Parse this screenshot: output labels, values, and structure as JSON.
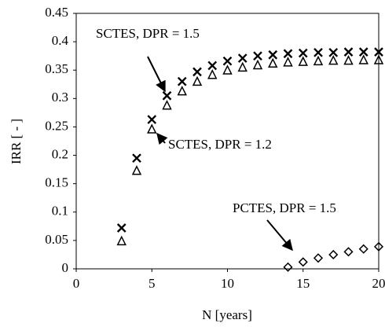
{
  "chart_data": {
    "type": "scatter",
    "x_label": "N [years]",
    "y_label": "IRR [ - ]",
    "xlim": [
      0,
      20
    ],
    "xticks": [
      0,
      5,
      10,
      15,
      20
    ],
    "ylim": [
      0,
      0.45
    ],
    "yticks": [
      0,
      0.05,
      0.1,
      0.15,
      0.2,
      0.25,
      0.3,
      0.35,
      0.4,
      0.45
    ],
    "series": [
      {
        "marker": "x",
        "color": "#000000",
        "x": [
          3,
          4,
          5,
          6,
          7,
          8,
          9,
          10,
          11,
          12,
          13,
          14,
          15,
          16,
          17,
          18,
          19,
          20
        ],
        "values": [
          0.072,
          0.195,
          0.263,
          0.305,
          0.33,
          0.347,
          0.358,
          0.366,
          0.371,
          0.375,
          0.377,
          0.379,
          0.38,
          0.381,
          0.381,
          0.382,
          0.382,
          0.382
        ]
      },
      {
        "marker": "triangle",
        "color": "#000000",
        "x": [
          3,
          4,
          5,
          6,
          7,
          8,
          9,
          10,
          11,
          12,
          13,
          14,
          15,
          16,
          17,
          18,
          19,
          20
        ],
        "values": [
          0.048,
          0.172,
          0.245,
          0.287,
          0.312,
          0.329,
          0.341,
          0.349,
          0.354,
          0.358,
          0.361,
          0.363,
          0.364,
          0.365,
          0.366,
          0.366,
          0.367,
          0.367
        ]
      },
      {
        "marker": "diamond",
        "color": "#000000",
        "x": [
          14,
          15,
          16,
          17,
          18,
          19,
          20
        ],
        "values": [
          0.003,
          0.012,
          0.019,
          0.025,
          0.03,
          0.035,
          0.039
        ]
      }
    ],
    "annotations": [
      "SCTES, DPR = 1.5",
      "SCTES, DPR = 1.2",
      "PCTES, DPR = 1.5"
    ]
  }
}
